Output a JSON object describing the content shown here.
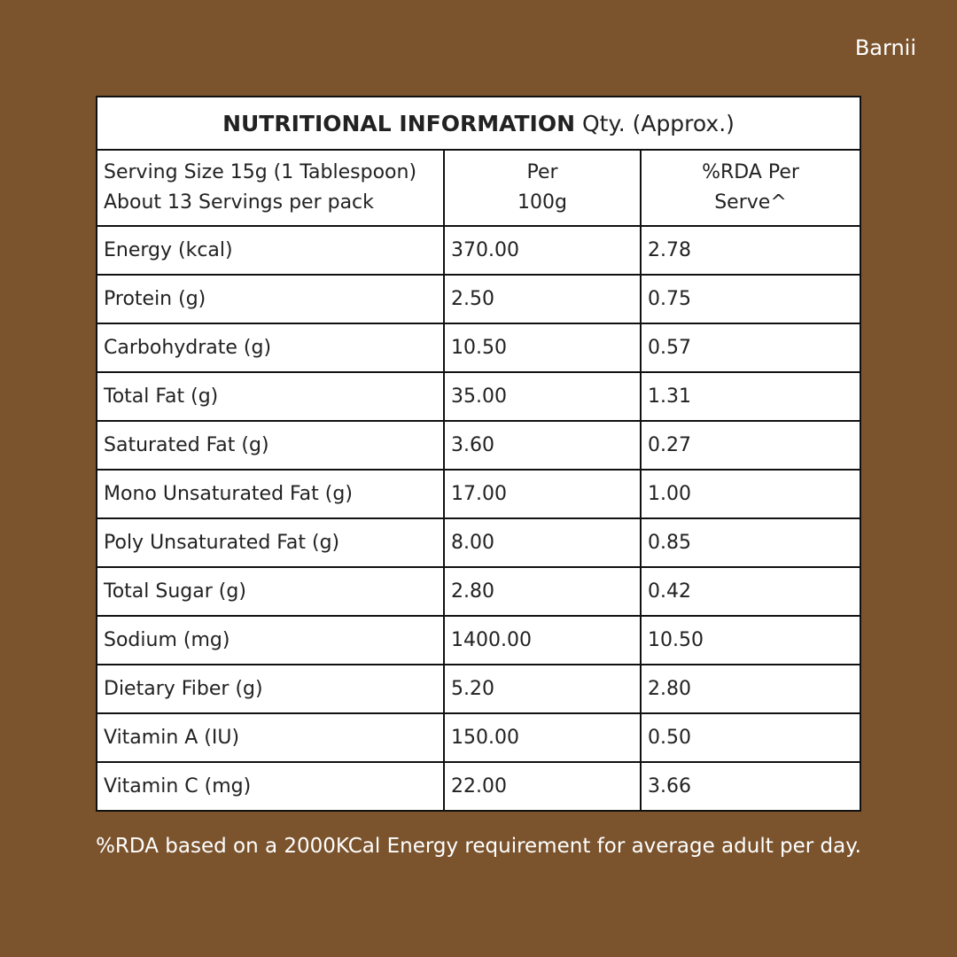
{
  "brand": "Barnii",
  "title_bold": "NUTRITIONAL INFORMATION",
  "title_rest": " Qty. (Approx.)",
  "header": {
    "serving1": "Serving Size 15g (1 Tablespoon)",
    "serving2": "About 13 Servings per pack",
    "per1": "Per",
    "per2": "100g",
    "rda1": "%RDA Per",
    "rda2": "Serve^"
  },
  "rows": [
    [
      "Energy (kcal)",
      "370.00",
      "2.78"
    ],
    [
      "Protein (g)",
      "2.50",
      "0.75"
    ],
    [
      "Carbohydrate (g)",
      "10.50",
      "0.57"
    ],
    [
      "Total Fat (g)",
      "35.00",
      "1.31"
    ],
    [
      "Saturated Fat (g)",
      "3.60",
      "0.27"
    ],
    [
      "Mono Unsaturated Fat (g)",
      "17.00",
      "1.00"
    ],
    [
      "Poly Unsaturated Fat (g)",
      "8.00",
      "0.85"
    ],
    [
      "Total Sugar (g)",
      "2.80",
      "0.42"
    ],
    [
      "Sodium (mg)",
      "1400.00",
      "10.50"
    ],
    [
      "Dietary Fiber (g)",
      "5.20",
      "2.80"
    ],
    [
      "Vitamin A (IU)",
      "150.00",
      "0.50"
    ],
    [
      "Vitamin C (mg)",
      "22.00",
      "3.66"
    ]
  ],
  "footnote": "%RDA based on a 2000KCal Energy requirement for average adult per day."
}
